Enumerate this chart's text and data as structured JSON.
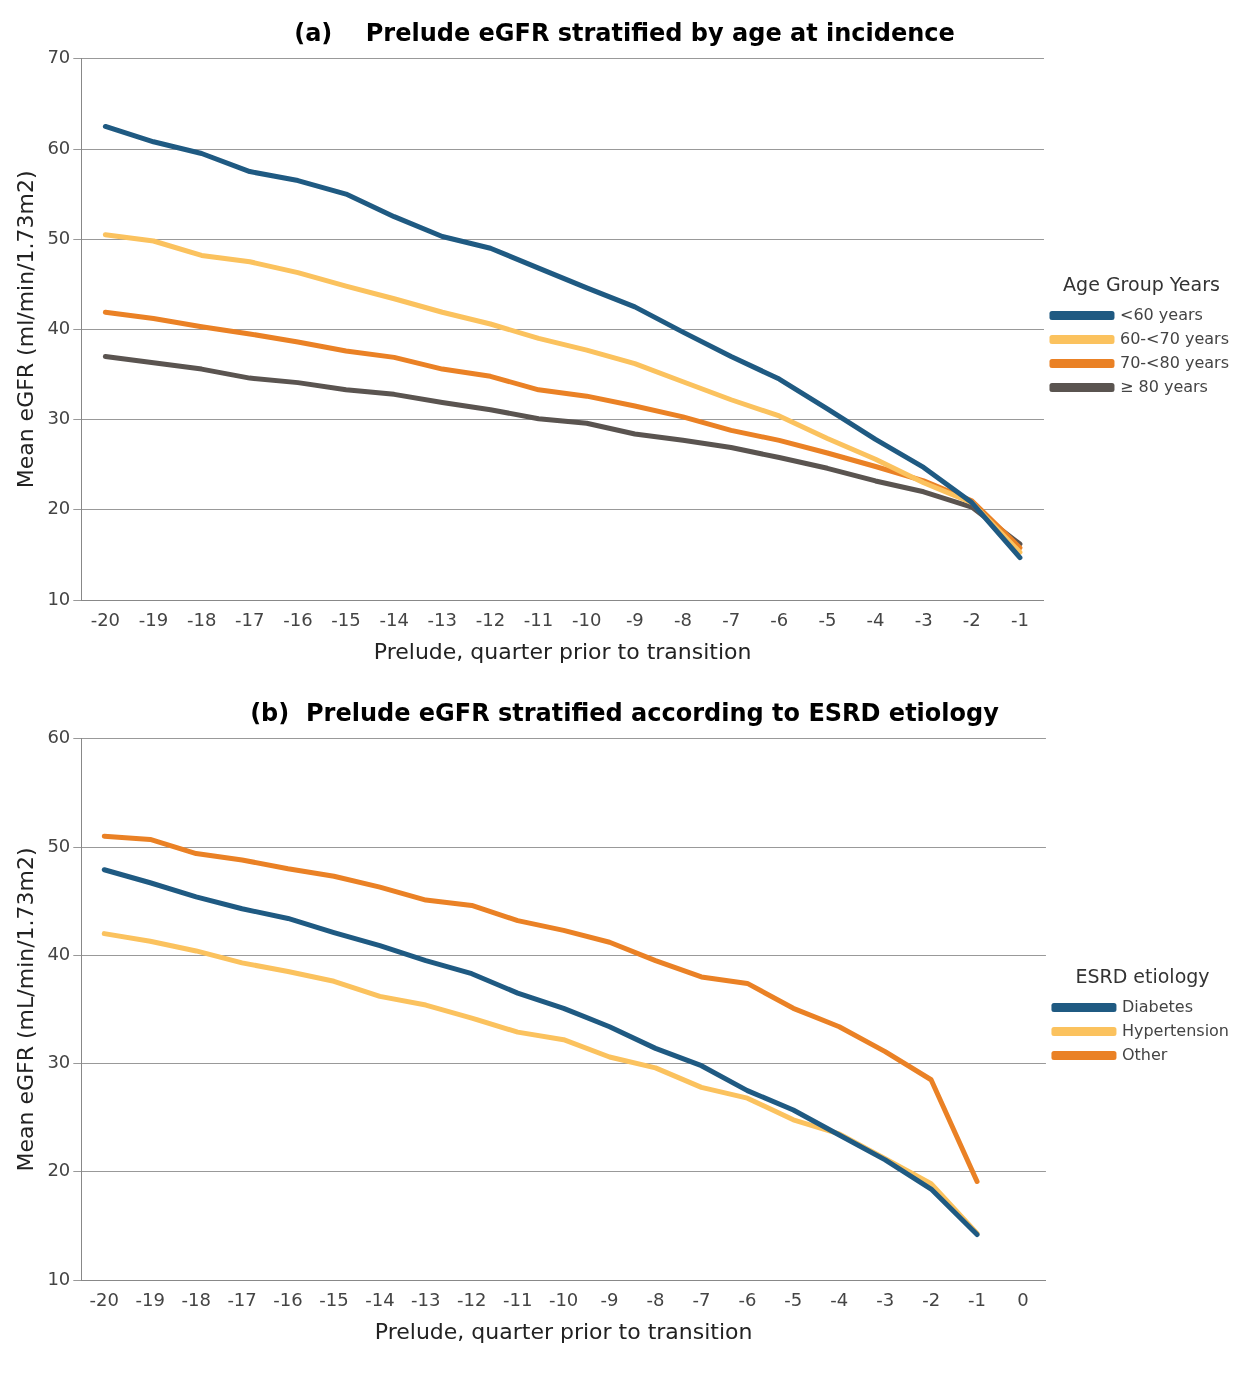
{
  "chart_data": [
    {
      "type": "line",
      "title": "(a)    Prelude eGFR stratified by age at incidence",
      "xlabel": "Prelude, quarter prior to transition",
      "ylabel": "Mean eGFR (ml/min/1.73m2)",
      "legend_title": "Age Group Years",
      "categories": [
        "-20",
        "-19",
        "-18",
        "-17",
        "-16",
        "-15",
        "-14",
        "-13",
        "-12",
        "-11",
        "-10",
        "-9",
        "-8",
        "-7",
        "-6",
        "-5",
        "-4",
        "-3",
        "-2",
        "-1"
      ],
      "series": [
        {
          "name": "<60 years",
          "color": "#1f5a82",
          "values": [
            62.5,
            60.8,
            59.5,
            57.5,
            56.5,
            55,
            52.5,
            50.3,
            49,
            46.8,
            44.6,
            42.5,
            39.7,
            37,
            34.5,
            31.2,
            27.8,
            24.7,
            20.8,
            14.7
          ]
        },
        {
          "name": "60-<70 years",
          "color": "#fbc25e",
          "values": [
            50.5,
            49.8,
            48.2,
            47.5,
            46.3,
            44.8,
            43.4,
            41.9,
            40.6,
            39,
            37.7,
            36.2,
            34.2,
            32.2,
            30.4,
            27.9,
            25.6,
            23,
            20.8,
            15.3
          ]
        },
        {
          "name": "70-<80 years",
          "color": "#ea8125",
          "values": [
            41.9,
            41.2,
            40.3,
            39.5,
            38.6,
            37.6,
            36.9,
            35.6,
            34.8,
            33.3,
            32.6,
            31.5,
            30.3,
            28.8,
            27.7,
            26.3,
            24.8,
            23.2,
            21,
            15.8
          ]
        },
        {
          "name": "≥ 80 years",
          "color": "#5a5450",
          "values": [
            37,
            36.3,
            35.6,
            34.6,
            34.1,
            33.3,
            32.8,
            31.9,
            31.1,
            30.1,
            29.6,
            28.4,
            27.7,
            26.9,
            25.8,
            24.6,
            23.2,
            22,
            20.3,
            16.2
          ]
        }
      ],
      "ylim": [
        10,
        70
      ],
      "yticks": [
        10,
        20,
        30,
        40,
        50,
        60,
        70
      ],
      "grid": "y",
      "legend": "right",
      "marker": "none",
      "line_style": "solid"
    },
    {
      "type": "line",
      "title": "(b)  Prelude eGFR stratified according to ESRD etiology",
      "xlabel": "Prelude, quarter prior to transition",
      "ylabel": "Mean eGFR (mL/min/1.73m2)",
      "legend_title": "ESRD etiology",
      "categories": [
        "-20",
        "-19",
        "-18",
        "-17",
        "-16",
        "-15",
        "-14",
        "-13",
        "-12",
        "-11",
        "-10",
        "-9",
        "-8",
        "-7",
        "-6",
        "-5",
        "-4",
        "-3",
        "-2",
        "-1",
        "0"
      ],
      "series": [
        {
          "name": "Diabetes",
          "color": "#1f5a82",
          "values": [
            47.9,
            46.7,
            45.4,
            44.3,
            43.4,
            42.1,
            40.9,
            39.5,
            38.3,
            36.5,
            35.1,
            33.4,
            31.4,
            29.8,
            27.5,
            25.7,
            23.4,
            21.1,
            18.4,
            14.2,
            null
          ]
        },
        {
          "name": "Hypertension",
          "color": "#fbc25e",
          "values": [
            42,
            41.3,
            40.4,
            39.3,
            38.5,
            37.6,
            36.2,
            35.4,
            34.2,
            32.9,
            32.2,
            30.6,
            29.6,
            27.8,
            26.8,
            24.8,
            23.5,
            21.2,
            18.9,
            14.3,
            null
          ]
        },
        {
          "name": "Other",
          "color": "#ea8125",
          "values": [
            51,
            50.7,
            49.4,
            48.8,
            48,
            47.3,
            46.3,
            45.1,
            44.6,
            43.2,
            42.3,
            41.2,
            39.5,
            38,
            37.4,
            35.1,
            33.4,
            31.1,
            28.5,
            19.1,
            null
          ]
        }
      ],
      "ylim": [
        10,
        60
      ],
      "yticks": [
        10,
        20,
        30,
        40,
        50,
        60
      ],
      "grid": "y",
      "legend": "right",
      "marker": "none",
      "line_style": "solid"
    }
  ]
}
